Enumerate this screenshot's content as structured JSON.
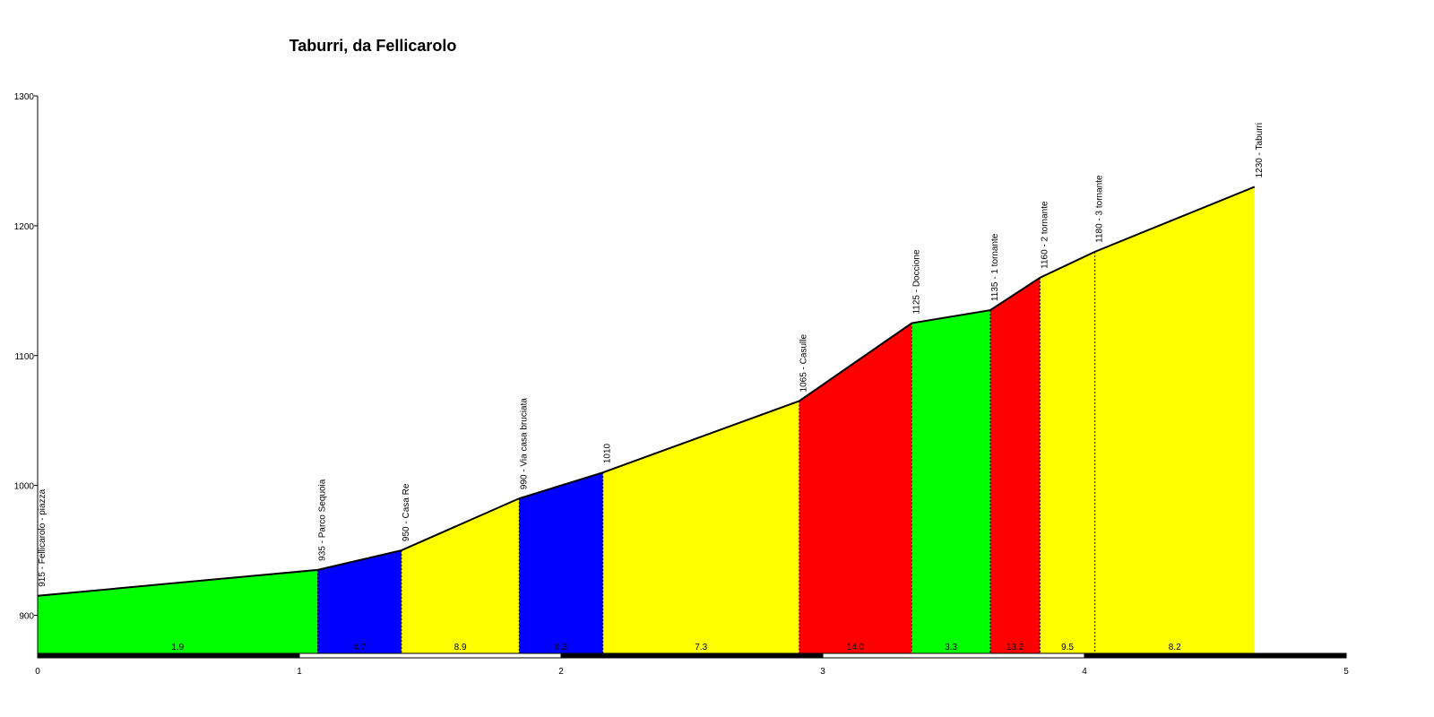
{
  "chart_data": {
    "type": "area",
    "title": "Taburri, da Fellicarolo",
    "xlabel": "",
    "ylabel": "",
    "xlim": [
      0,
      5
    ],
    "ylim": [
      870,
      1300
    ],
    "x_ticks": [
      0,
      1,
      2,
      3,
      4,
      5
    ],
    "y_ticks": [
      900,
      1000,
      1100,
      1200,
      1300
    ],
    "points": [
      {
        "x": 0.0,
        "y": 915,
        "label": "915 - Fellicarolo - piazza"
      },
      {
        "x": 1.07,
        "y": 935,
        "label": "935 - Parco Sequoia"
      },
      {
        "x": 1.39,
        "y": 950,
        "label": "950 - Casa Re"
      },
      {
        "x": 1.84,
        "y": 990,
        "label": "990 - Via casa bruciata"
      },
      {
        "x": 2.16,
        "y": 1010,
        "label": "1010"
      },
      {
        "x": 2.91,
        "y": 1065,
        "label": "1065 - Casulle"
      },
      {
        "x": 3.34,
        "y": 1125,
        "label": "1125 - Doccione"
      },
      {
        "x": 3.64,
        "y": 1135,
        "label": "1135 - 1 tornante"
      },
      {
        "x": 3.83,
        "y": 1160,
        "label": "1160 - 2 tornante"
      },
      {
        "x": 4.04,
        "y": 1180,
        "label": "1180 - 3 tornante"
      },
      {
        "x": 4.65,
        "y": 1230,
        "label": "1230 - Taburri"
      }
    ],
    "segments": [
      {
        "grade": "1.9",
        "color": "#00ff00"
      },
      {
        "grade": "4.7",
        "color": "#0000ff"
      },
      {
        "grade": "8.9",
        "color": "#ffff00"
      },
      {
        "grade": "6.3",
        "color": "#0000ff"
      },
      {
        "grade": "7.3",
        "color": "#ffff00"
      },
      {
        "grade": "14.0",
        "color": "#ff0000"
      },
      {
        "grade": "3.3",
        "color": "#00ff00"
      },
      {
        "grade": "13.2",
        "color": "#ff0000"
      },
      {
        "grade": "9.5",
        "color": "#ffff00"
      },
      {
        "grade": "8.2",
        "color": "#ffff00"
      }
    ],
    "grid": false,
    "legend": "none"
  }
}
